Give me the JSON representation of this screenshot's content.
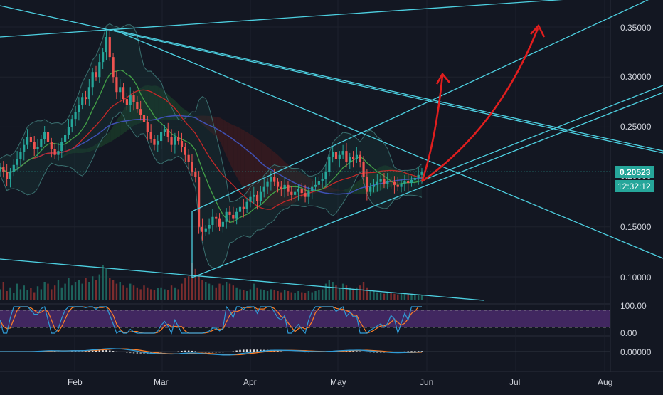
{
  "chart_data": [
    {
      "type": "candlestick",
      "title": "",
      "x_tick_labels": [
        "Feb",
        "Mar",
        "Apr",
        "May",
        "Jun",
        "Jul",
        "Aug"
      ],
      "y_tick_labels": [
        "0.35000",
        "0.30000",
        "0.25000",
        "0.20000",
        "0.15000",
        "0.10000"
      ],
      "ylim": [
        0.08,
        0.38
      ],
      "last_price": "0.20523",
      "countdown": "12:32:12",
      "colors": {
        "background": "#131722",
        "up": "#26a69a",
        "down": "#ef5350",
        "trendline": "#4dd0e1",
        "projection_arrow": "#e01e1e",
        "ema_green": "#43a047",
        "ema_red": "#c62828",
        "ma_blue": "#3f51b5"
      },
      "closes": [
        0.21,
        0.205,
        0.198,
        0.205,
        0.212,
        0.218,
        0.225,
        0.232,
        0.24,
        0.235,
        0.228,
        0.23,
        0.238,
        0.245,
        0.235,
        0.228,
        0.222,
        0.226,
        0.235,
        0.242,
        0.25,
        0.258,
        0.265,
        0.272,
        0.28,
        0.278,
        0.29,
        0.305,
        0.3,
        0.315,
        0.325,
        0.34,
        0.32,
        0.3,
        0.285,
        0.29,
        0.278,
        0.272,
        0.282,
        0.275,
        0.268,
        0.262,
        0.255,
        0.245,
        0.238,
        0.232,
        0.236,
        0.245,
        0.248,
        0.24,
        0.232,
        0.24,
        0.236,
        0.23,
        0.222,
        0.215,
        0.205,
        0.2,
        0.15,
        0.145,
        0.148,
        0.152,
        0.16,
        0.158,
        0.15,
        0.155,
        0.165,
        0.162,
        0.158,
        0.165,
        0.17,
        0.168,
        0.175,
        0.18,
        0.182,
        0.176,
        0.185,
        0.19,
        0.195,
        0.2,
        0.195,
        0.19,
        0.188,
        0.192,
        0.185,
        0.182,
        0.185,
        0.188,
        0.184,
        0.18,
        0.186,
        0.19,
        0.192,
        0.196,
        0.198,
        0.205,
        0.22,
        0.225,
        0.218,
        0.222,
        0.226,
        0.215,
        0.22,
        0.218,
        0.222,
        0.215,
        0.2,
        0.185,
        0.19,
        0.192,
        0.195,
        0.198,
        0.193,
        0.196,
        0.195,
        0.192,
        0.19,
        0.193,
        0.196,
        0.194,
        0.197,
        0.199,
        0.202,
        0.205
      ],
      "volume_relative": [
        0.3,
        0.5,
        0.25,
        0.35,
        0.2,
        0.45,
        0.3,
        0.4,
        0.28,
        0.33,
        0.22,
        0.38,
        0.3,
        0.5,
        0.45,
        0.3,
        0.4,
        0.55,
        0.35,
        0.45,
        0.6,
        0.4,
        0.5,
        0.55,
        0.45,
        0.6,
        0.5,
        0.65,
        0.55,
        0.7,
        0.95,
        0.85,
        0.6,
        0.55,
        0.45,
        0.5,
        0.4,
        0.35,
        0.45,
        0.4,
        0.35,
        0.3,
        0.4,
        0.35,
        0.3,
        0.28,
        0.33,
        0.35,
        0.3,
        0.28,
        0.4,
        0.35,
        0.3,
        0.45,
        0.6,
        0.65,
        1.0,
        0.85,
        0.7,
        0.55,
        0.5,
        0.45,
        0.4,
        0.35,
        0.45,
        0.4,
        0.5,
        0.45,
        0.4,
        0.35,
        0.3,
        0.28,
        0.25,
        0.3,
        0.45,
        0.35,
        0.3,
        0.28,
        0.25,
        0.3,
        0.28,
        0.25,
        0.22,
        0.28,
        0.25,
        0.22,
        0.2,
        0.25,
        0.22,
        0.2,
        0.25,
        0.22,
        0.25,
        0.28,
        0.3,
        0.45,
        0.55,
        0.5,
        0.4,
        0.35,
        0.45,
        0.4,
        0.35,
        0.3,
        0.35,
        0.4,
        0.5,
        0.35,
        0.28,
        0.25,
        0.22,
        0.2,
        0.18,
        0.22,
        0.2,
        0.18,
        0.16,
        0.18,
        0.2,
        0.18,
        0.16,
        0.15,
        0.14,
        0.15
      ]
    },
    {
      "type": "line",
      "name": "stochastic",
      "y_tick_labels": [
        "100.00",
        "0.00"
      ],
      "ylim": [
        0,
        100
      ]
    },
    {
      "type": "line",
      "name": "macd",
      "y_tick_labels": [
        "0.00000"
      ]
    }
  ]
}
